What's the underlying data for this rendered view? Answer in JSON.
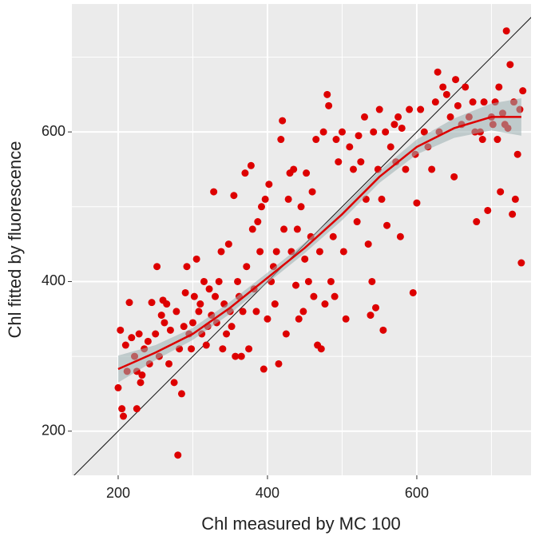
{
  "chart_data": {
    "type": "scatter",
    "x_label": "Chl measured by MC 100",
    "y_label": "Chl fitted by fluorescence",
    "xlim": [
      138,
      753
    ],
    "ylim": [
      141,
      771
    ],
    "xticks": [
      200,
      400,
      600
    ],
    "yticks": [
      200,
      400,
      600
    ],
    "minor_grid": {
      "x": [
        300,
        500,
        700
      ],
      "y": [
        300,
        500,
        700
      ]
    },
    "grid": true,
    "identity_line": true,
    "color": "#dd0000",
    "x": [
      200,
      203,
      205,
      207,
      210,
      212,
      215,
      218,
      222,
      225,
      225,
      228,
      230,
      232,
      235,
      240,
      242,
      245,
      250,
      252,
      255,
      258,
      260,
      262,
      265,
      268,
      270,
      275,
      278,
      280,
      282,
      285,
      288,
      290,
      292,
      295,
      298,
      300,
      302,
      305,
      308,
      310,
      312,
      315,
      318,
      320,
      322,
      325,
      328,
      330,
      332,
      335,
      338,
      340,
      342,
      345,
      348,
      350,
      352,
      355,
      357,
      360,
      362,
      365,
      367,
      370,
      372,
      375,
      378,
      380,
      382,
      385,
      387,
      390,
      392,
      395,
      397,
      400,
      402,
      405,
      408,
      410,
      412,
      415,
      418,
      420,
      422,
      425,
      428,
      430,
      432,
      435,
      438,
      440,
      442,
      445,
      448,
      450,
      452,
      455,
      458,
      460,
      462,
      465,
      467,
      470,
      472,
      475,
      477,
      480,
      482,
      485,
      488,
      490,
      492,
      495,
      500,
      502,
      505,
      510,
      515,
      520,
      522,
      525,
      530,
      532,
      535,
      538,
      540,
      542,
      545,
      548,
      550,
      553,
      555,
      558,
      560,
      565,
      570,
      572,
      575,
      578,
      580,
      585,
      590,
      595,
      598,
      600,
      605,
      610,
      615,
      620,
      625,
      628,
      630,
      635,
      640,
      645,
      650,
      652,
      655,
      660,
      665,
      670,
      675,
      678,
      680,
      685,
      688,
      690,
      695,
      700,
      702,
      705,
      708,
      710,
      712,
      715,
      718,
      720,
      722,
      725,
      728,
      730,
      732,
      735,
      738,
      740,
      742
    ],
    "values": [
      258,
      335,
      230,
      220,
      315,
      280,
      372,
      325,
      300,
      230,
      280,
      330,
      265,
      275,
      310,
      320,
      290,
      372,
      330,
      420,
      300,
      355,
      375,
      345,
      370,
      290,
      335,
      265,
      360,
      168,
      310,
      250,
      340,
      385,
      420,
      330,
      310,
      345,
      380,
      430,
      360,
      370,
      330,
      400,
      315,
      340,
      390,
      355,
      520,
      380,
      345,
      400,
      440,
      310,
      370,
      330,
      450,
      360,
      340,
      515,
      300,
      400,
      380,
      300,
      360,
      545,
      420,
      310,
      555,
      470,
      390,
      360,
      480,
      440,
      500,
      283,
      510,
      350,
      530,
      400,
      420,
      370,
      440,
      290,
      590,
      615,
      470,
      330,
      510,
      545,
      440,
      550,
      395,
      470,
      350,
      500,
      360,
      430,
      545,
      400,
      460,
      520,
      380,
      590,
      315,
      440,
      310,
      600,
      370,
      650,
      635,
      400,
      460,
      380,
      590,
      560,
      600,
      440,
      350,
      580,
      550,
      480,
      595,
      560,
      620,
      510,
      450,
      355,
      400,
      600,
      365,
      550,
      630,
      510,
      335,
      600,
      475,
      580,
      610,
      560,
      620,
      460,
      605,
      550,
      630,
      385,
      570,
      505,
      630,
      600,
      580,
      550,
      640,
      680,
      600,
      660,
      650,
      620,
      540,
      670,
      635,
      610,
      660,
      620,
      640,
      600,
      480,
      600,
      590,
      640,
      495,
      620,
      610,
      640,
      590,
      660,
      520,
      625,
      610,
      735,
      605,
      690,
      490,
      640,
      510,
      570,
      630,
      425,
      655
    ],
    "smooth": {
      "x": [
        200,
        250,
        300,
        350,
        400,
        450,
        500,
        550,
        600,
        650,
        700,
        740
      ],
      "y": [
        283,
        305,
        330,
        365,
        405,
        445,
        490,
        540,
        580,
        605,
        620,
        620
      ],
      "lower": [
        265,
        295,
        322,
        357,
        398,
        438,
        482,
        532,
        570,
        592,
        602,
        595
      ],
      "upper": [
        301,
        315,
        338,
        373,
        412,
        452,
        498,
        548,
        590,
        618,
        638,
        645
      ]
    }
  }
}
